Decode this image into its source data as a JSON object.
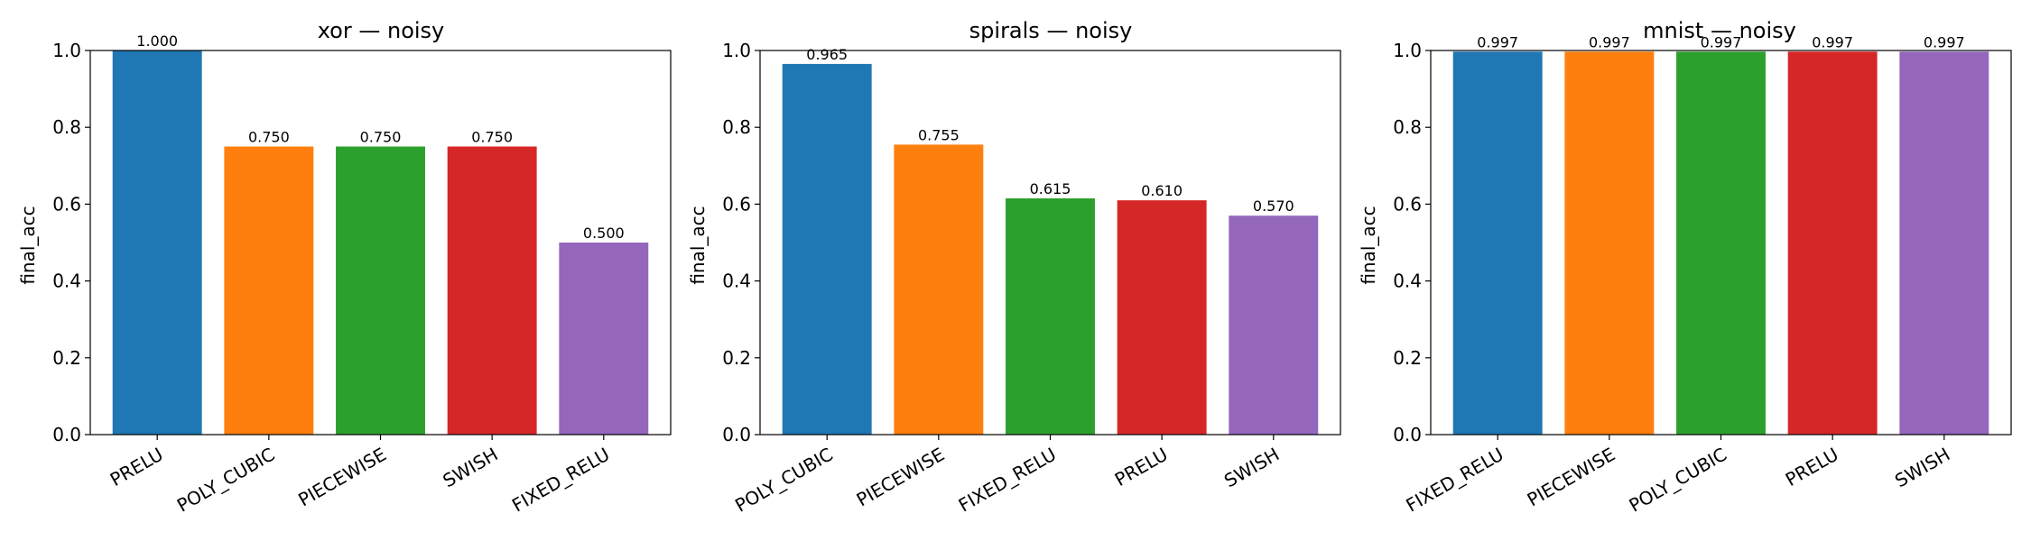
{
  "chart_data": [
    {
      "type": "bar",
      "title": "xor — noisy",
      "xlabel": "",
      "ylabel": "final_acc",
      "ylim": [
        0,
        1
      ],
      "yticks": [
        "0.0",
        "0.2",
        "0.4",
        "0.6",
        "0.8",
        "1.0"
      ],
      "categories": [
        "PRELU",
        "POLY_CUBIC",
        "PIECEWISE",
        "SWISH",
        "FIXED_RELU"
      ],
      "values": [
        1.0,
        0.75,
        0.75,
        0.75,
        0.5
      ],
      "value_labels": [
        "1.000",
        "0.750",
        "0.750",
        "0.750",
        "0.500"
      ],
      "colors": [
        "#1f77b4",
        "#ff7f0e",
        "#2ca02c",
        "#d62728",
        "#9467bd"
      ],
      "grid": false
    },
    {
      "type": "bar",
      "title": "spirals — noisy",
      "xlabel": "",
      "ylabel": "final_acc",
      "ylim": [
        0,
        1
      ],
      "yticks": [
        "0.0",
        "0.2",
        "0.4",
        "0.6",
        "0.8",
        "1.0"
      ],
      "categories": [
        "POLY_CUBIC",
        "PIECEWISE",
        "FIXED_RELU",
        "PRELU",
        "SWISH"
      ],
      "values": [
        0.965,
        0.755,
        0.615,
        0.61,
        0.57
      ],
      "value_labels": [
        "0.965",
        "0.755",
        "0.615",
        "0.610",
        "0.570"
      ],
      "colors": [
        "#1f77b4",
        "#ff7f0e",
        "#2ca02c",
        "#d62728",
        "#9467bd"
      ],
      "grid": false
    },
    {
      "type": "bar",
      "title": "mnist — noisy",
      "xlabel": "",
      "ylabel": "final_acc",
      "ylim": [
        0,
        1
      ],
      "yticks": [
        "0.0",
        "0.2",
        "0.4",
        "0.6",
        "0.8",
        "1.0"
      ],
      "categories": [
        "FIXED_RELU",
        "PIECEWISE",
        "POLY_CUBIC",
        "PRELU",
        "SWISH"
      ],
      "values": [
        0.997,
        0.997,
        0.997,
        0.997,
        0.997
      ],
      "value_labels": [
        "0.997",
        "0.997",
        "0.997",
        "0.997",
        "0.997"
      ],
      "colors": [
        "#1f77b4",
        "#ff7f0e",
        "#2ca02c",
        "#d62728",
        "#9467bd"
      ],
      "grid": false
    }
  ]
}
